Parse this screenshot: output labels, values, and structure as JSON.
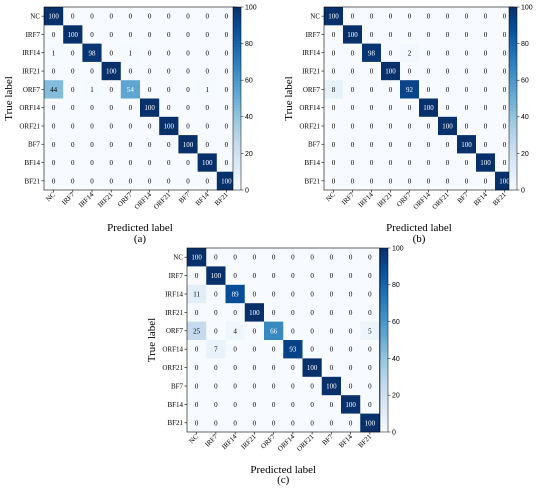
{
  "chart_data": [
    {
      "type": "heatmap",
      "caption": "(a)",
      "xlabel": "Predicted label",
      "ylabel": "True label",
      "x_categories": [
        "NC",
        "IRF7",
        "IRF14",
        "IRF21",
        "ORF7",
        "ORF14",
        "ORF21",
        "BF7",
        "BF14",
        "BF21"
      ],
      "y_categories": [
        "NC",
        "IRF7",
        "IRF14",
        "IRF21",
        "ORF7",
        "ORF14",
        "ORF21",
        "BF7",
        "BF14",
        "BF21"
      ],
      "values": [
        [
          100,
          0,
          0,
          0,
          0,
          0,
          0,
          0,
          0,
          0
        ],
        [
          0,
          100,
          0,
          0,
          0,
          0,
          0,
          0,
          0,
          0
        ],
        [
          1,
          0,
          98,
          0,
          1,
          0,
          0,
          0,
          0,
          0
        ],
        [
          0,
          0,
          0,
          100,
          0,
          0,
          0,
          0,
          0,
          0
        ],
        [
          44,
          0,
          1,
          0,
          54,
          0,
          0,
          0,
          1,
          0
        ],
        [
          0,
          0,
          0,
          0,
          0,
          100,
          0,
          0,
          0,
          0
        ],
        [
          0,
          0,
          0,
          0,
          0,
          0,
          100,
          0,
          0,
          0
        ],
        [
          0,
          0,
          0,
          0,
          0,
          0,
          0,
          100,
          0,
          0
        ],
        [
          0,
          0,
          0,
          0,
          0,
          0,
          0,
          0,
          100,
          0
        ],
        [
          0,
          0,
          0,
          0,
          0,
          0,
          0,
          0,
          0,
          100
        ]
      ],
      "colorbar_range": [
        0,
        100
      ],
      "colorbar_ticks": [
        "0",
        "20",
        "40",
        "60",
        "80",
        "100"
      ],
      "colormap": [
        "#f7fbff",
        "#08306b"
      ]
    },
    {
      "type": "heatmap",
      "caption": "(b)",
      "xlabel": "Predicted label",
      "ylabel": "True label",
      "x_categories": [
        "NC",
        "IRF7",
        "IRF14",
        "IRF21",
        "ORF7",
        "ORF14",
        "ORF21",
        "BF7",
        "BF14",
        "BF21"
      ],
      "y_categories": [
        "NC",
        "IRF7",
        "IRF14",
        "IRF21",
        "ORF7",
        "ORF14",
        "ORF21",
        "BF7",
        "BF14",
        "BF21"
      ],
      "values": [
        [
          100,
          0,
          0,
          0,
          0,
          0,
          0,
          0,
          0,
          0
        ],
        [
          0,
          100,
          0,
          0,
          0,
          0,
          0,
          0,
          0,
          0
        ],
        [
          0,
          0,
          98,
          0,
          2,
          0,
          0,
          0,
          0,
          0
        ],
        [
          0,
          0,
          0,
          100,
          0,
          0,
          0,
          0,
          0,
          0
        ],
        [
          8,
          0,
          0,
          0,
          92,
          0,
          0,
          0,
          0,
          0
        ],
        [
          0,
          0,
          0,
          0,
          0,
          100,
          0,
          0,
          0,
          0
        ],
        [
          0,
          0,
          0,
          0,
          0,
          0,
          100,
          0,
          0,
          0
        ],
        [
          0,
          0,
          0,
          0,
          0,
          0,
          0,
          100,
          0,
          0
        ],
        [
          0,
          0,
          0,
          0,
          0,
          0,
          0,
          0,
          100,
          0
        ],
        [
          0,
          0,
          0,
          0,
          0,
          0,
          0,
          0,
          0,
          100
        ]
      ],
      "colorbar_range": [
        0,
        100
      ],
      "colorbar_ticks": [
        "0",
        "20",
        "40",
        "60",
        "80",
        "100"
      ],
      "colormap": [
        "#f7fbff",
        "#08306b"
      ]
    },
    {
      "type": "heatmap",
      "caption": "(c)",
      "xlabel": "Predicted label",
      "ylabel": "True label",
      "x_categories": [
        "NC",
        "IRF7",
        "IRF14",
        "IRF21",
        "ORF7",
        "ORF14",
        "ORF21",
        "BF7",
        "BF14",
        "BF21"
      ],
      "y_categories": [
        "NC",
        "IRF7",
        "IRF14",
        "IRF21",
        "ORF7",
        "ORF14",
        "ORF21",
        "BF7",
        "BF14",
        "BF21"
      ],
      "values": [
        [
          100,
          0,
          0,
          0,
          0,
          0,
          0,
          0,
          0,
          0
        ],
        [
          0,
          100,
          0,
          0,
          0,
          0,
          0,
          0,
          0,
          0
        ],
        [
          11,
          0,
          89,
          0,
          0,
          0,
          0,
          0,
          0,
          0
        ],
        [
          0,
          0,
          0,
          100,
          0,
          0,
          0,
          0,
          0,
          0
        ],
        [
          25,
          0,
          4,
          0,
          66,
          0,
          0,
          0,
          0,
          5
        ],
        [
          0,
          7,
          0,
          0,
          0,
          93,
          0,
          0,
          0,
          0
        ],
        [
          0,
          0,
          0,
          0,
          0,
          0,
          100,
          0,
          0,
          0
        ],
        [
          0,
          0,
          0,
          0,
          0,
          0,
          0,
          100,
          0,
          0
        ],
        [
          0,
          0,
          0,
          0,
          0,
          0,
          0,
          0,
          100,
          0
        ],
        [
          0,
          0,
          0,
          0,
          0,
          0,
          0,
          0,
          0,
          100
        ]
      ],
      "colorbar_range": [
        0,
        100
      ],
      "colorbar_ticks": [
        "0",
        "20",
        "40",
        "60",
        "80",
        "100"
      ],
      "colormap": [
        "#f7fbff",
        "#08306b"
      ]
    }
  ]
}
